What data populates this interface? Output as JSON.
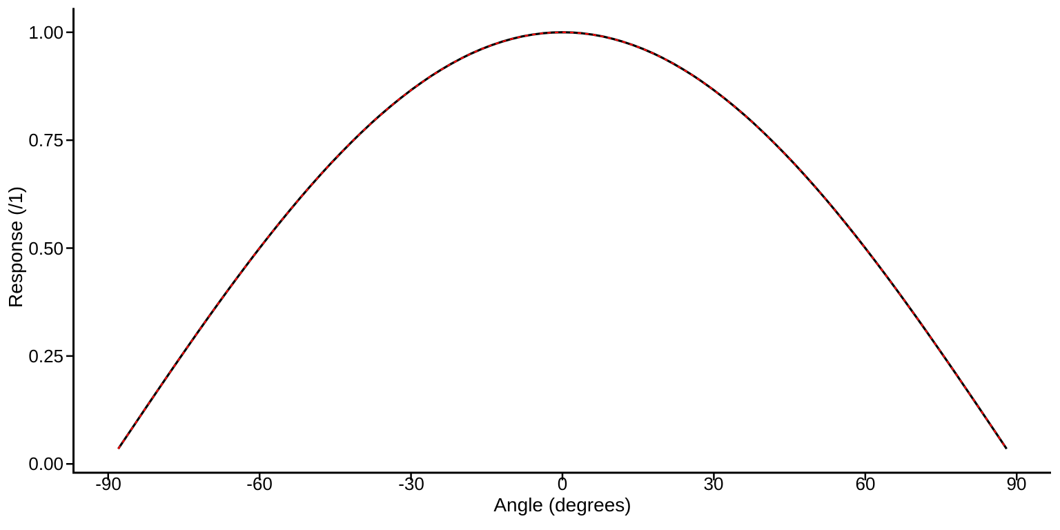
{
  "chart_data": {
    "type": "line",
    "title": "",
    "xlabel": "Angle (degrees)",
    "ylabel": "Response (/1)",
    "xlim": [
      -96.8,
      96.8
    ],
    "ylim": [
      -0.022,
      1.054
    ],
    "grid": false,
    "legend": "none",
    "background": "#FFFFFF",
    "axis_color": "#000000",
    "x_ticks": [
      -90,
      -60,
      -30,
      0,
      30,
      60,
      90
    ],
    "x_tick_labels": [
      "-90",
      "-60",
      "-30",
      "0",
      "30",
      "60",
      "90"
    ],
    "y_ticks": [
      0,
      0.25,
      0.5,
      0.75,
      1
    ],
    "y_tick_labels": [
      "0.00",
      "0.25",
      "0.50",
      "0.75",
      "1.00"
    ],
    "x": [
      -88,
      -86,
      -84,
      -82,
      -80,
      -78,
      -76,
      -74,
      -72,
      -70,
      -68,
      -66,
      -64,
      -62,
      -60,
      -58,
      -56,
      -54,
      -52,
      -50,
      -48,
      -46,
      -44,
      -42,
      -40,
      -38,
      -36,
      -34,
      -32,
      -30,
      -28,
      -26,
      -24,
      -22,
      -20,
      -18,
      -16,
      -14,
      -12,
      -10,
      -8,
      -6,
      -4,
      -2,
      0,
      2,
      4,
      6,
      8,
      10,
      12,
      14,
      16,
      18,
      20,
      22,
      24,
      26,
      28,
      30,
      32,
      34,
      36,
      38,
      40,
      42,
      44,
      46,
      48,
      50,
      52,
      54,
      56,
      58,
      60,
      62,
      64,
      66,
      68,
      70,
      72,
      74,
      76,
      78,
      80,
      82,
      84,
      86,
      88
    ],
    "series": [
      {
        "name": "response-solid",
        "color": "#000000",
        "style": "solid",
        "stroke_width": 3.2,
        "values": [
          0.0349,
          0.0698,
          0.1045,
          0.1392,
          0.1736,
          0.2079,
          0.2419,
          0.2756,
          0.309,
          0.342,
          0.3746,
          0.4067,
          0.4384,
          0.4695,
          0.5,
          0.5299,
          0.5592,
          0.5878,
          0.6157,
          0.6428,
          0.6691,
          0.6947,
          0.7193,
          0.7431,
          0.766,
          0.788,
          0.809,
          0.829,
          0.848,
          0.866,
          0.8829,
          0.8988,
          0.9135,
          0.9272,
          0.9397,
          0.9511,
          0.9613,
          0.9703,
          0.9781,
          0.9848,
          0.9903,
          0.9945,
          0.9976,
          0.9994,
          1,
          0.9994,
          0.9976,
          0.9945,
          0.9903,
          0.9848,
          0.9781,
          0.9703,
          0.9613,
          0.9511,
          0.9397,
          0.9272,
          0.9135,
          0.8988,
          0.8829,
          0.866,
          0.848,
          0.829,
          0.809,
          0.788,
          0.766,
          0.7431,
          0.7193,
          0.6947,
          0.6691,
          0.6428,
          0.6157,
          0.5878,
          0.5592,
          0.5299,
          0.5,
          0.4695,
          0.4384,
          0.4067,
          0.3746,
          0.342,
          0.309,
          0.2756,
          0.2419,
          0.2079,
          0.1736,
          0.1392,
          0.1045,
          0.0698,
          0.0349
        ]
      },
      {
        "name": "response-dashed",
        "color": "#FF0000",
        "style": "dashed",
        "stroke_width": 2.2,
        "values": [
          0.0349,
          0.0698,
          0.1045,
          0.1392,
          0.1736,
          0.2079,
          0.2419,
          0.2756,
          0.309,
          0.342,
          0.3746,
          0.4067,
          0.4384,
          0.4695,
          0.5,
          0.5299,
          0.5592,
          0.5878,
          0.6157,
          0.6428,
          0.6691,
          0.6947,
          0.7193,
          0.7431,
          0.766,
          0.788,
          0.809,
          0.829,
          0.848,
          0.866,
          0.8829,
          0.8988,
          0.9135,
          0.9272,
          0.9397,
          0.9511,
          0.9613,
          0.9703,
          0.9781,
          0.9848,
          0.9903,
          0.9945,
          0.9976,
          0.9994,
          1,
          0.9994,
          0.9976,
          0.9945,
          0.9903,
          0.9848,
          0.9781,
          0.9703,
          0.9613,
          0.9511,
          0.9397,
          0.9272,
          0.9135,
          0.8988,
          0.8829,
          0.866,
          0.848,
          0.829,
          0.809,
          0.788,
          0.766,
          0.7431,
          0.7193,
          0.6947,
          0.6691,
          0.6428,
          0.6157,
          0.5878,
          0.5592,
          0.5299,
          0.5,
          0.4695,
          0.4384,
          0.4067,
          0.3746,
          0.342,
          0.309,
          0.2756,
          0.2419,
          0.2079,
          0.1736,
          0.1392,
          0.1045,
          0.0698,
          0.0349
        ]
      }
    ]
  }
}
